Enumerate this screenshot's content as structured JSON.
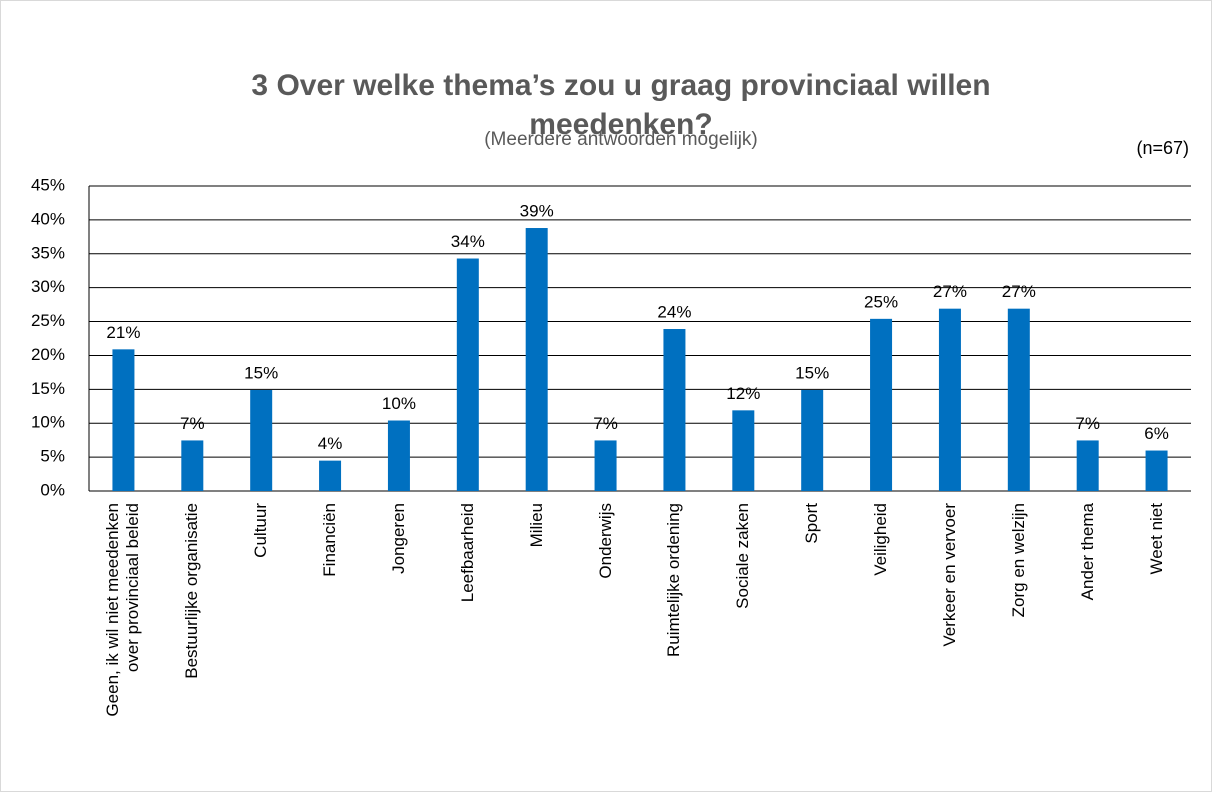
{
  "chart_data": {
    "type": "bar",
    "title": [
      "3 Over welke thema’s zou u graag provinciaal willen",
      "meedenken?"
    ],
    "subtitle": "(Meerdere antwoorden mogelijk)",
    "annotation": "(n=67)",
    "categories": [
      "Geen, ik wil niet meedenken over provinciaal beleid",
      "Bestuurlijke organisatie",
      "Cultuur",
      "Financiën",
      "Jongeren",
      "Leefbaarheid",
      "Milieu",
      "Onderwijs",
      "Ruimtelijke ordening",
      "Sociale zaken",
      "Sport",
      "Veiligheid",
      "Verkeer en vervoer",
      "Zorg en welzijn",
      "Ander thema",
      "Weet niet"
    ],
    "values": [
      20.9,
      7.46,
      14.9,
      4.48,
      10.4,
      34.3,
      38.8,
      7.46,
      23.9,
      11.9,
      14.9,
      25.4,
      26.9,
      26.9,
      7.46,
      5.97
    ],
    "value_labels": [
      "21%",
      "7%",
      "15%",
      "4%",
      "10%",
      "34%",
      "39%",
      "7%",
      "24%",
      "12%",
      "15%",
      "25%",
      "27%",
      "27%",
      "7%",
      "6%"
    ],
    "color": "#0070c0",
    "ylim": [
      0,
      45
    ],
    "yticks": [
      {
        "value": 0,
        "label": "0%"
      },
      {
        "value": 5,
        "label": "5%"
      },
      {
        "value": 10,
        "label": "10%"
      },
      {
        "value": 15,
        "label": "15%"
      },
      {
        "value": 20,
        "label": "20%"
      },
      {
        "value": 25,
        "label": "25%"
      },
      {
        "value": 30,
        "label": "30%"
      },
      {
        "value": 35,
        "label": "35%"
      },
      {
        "value": 40,
        "label": "40%"
      },
      {
        "value": 45,
        "label": "45%"
      }
    ],
    "grid": true
  }
}
